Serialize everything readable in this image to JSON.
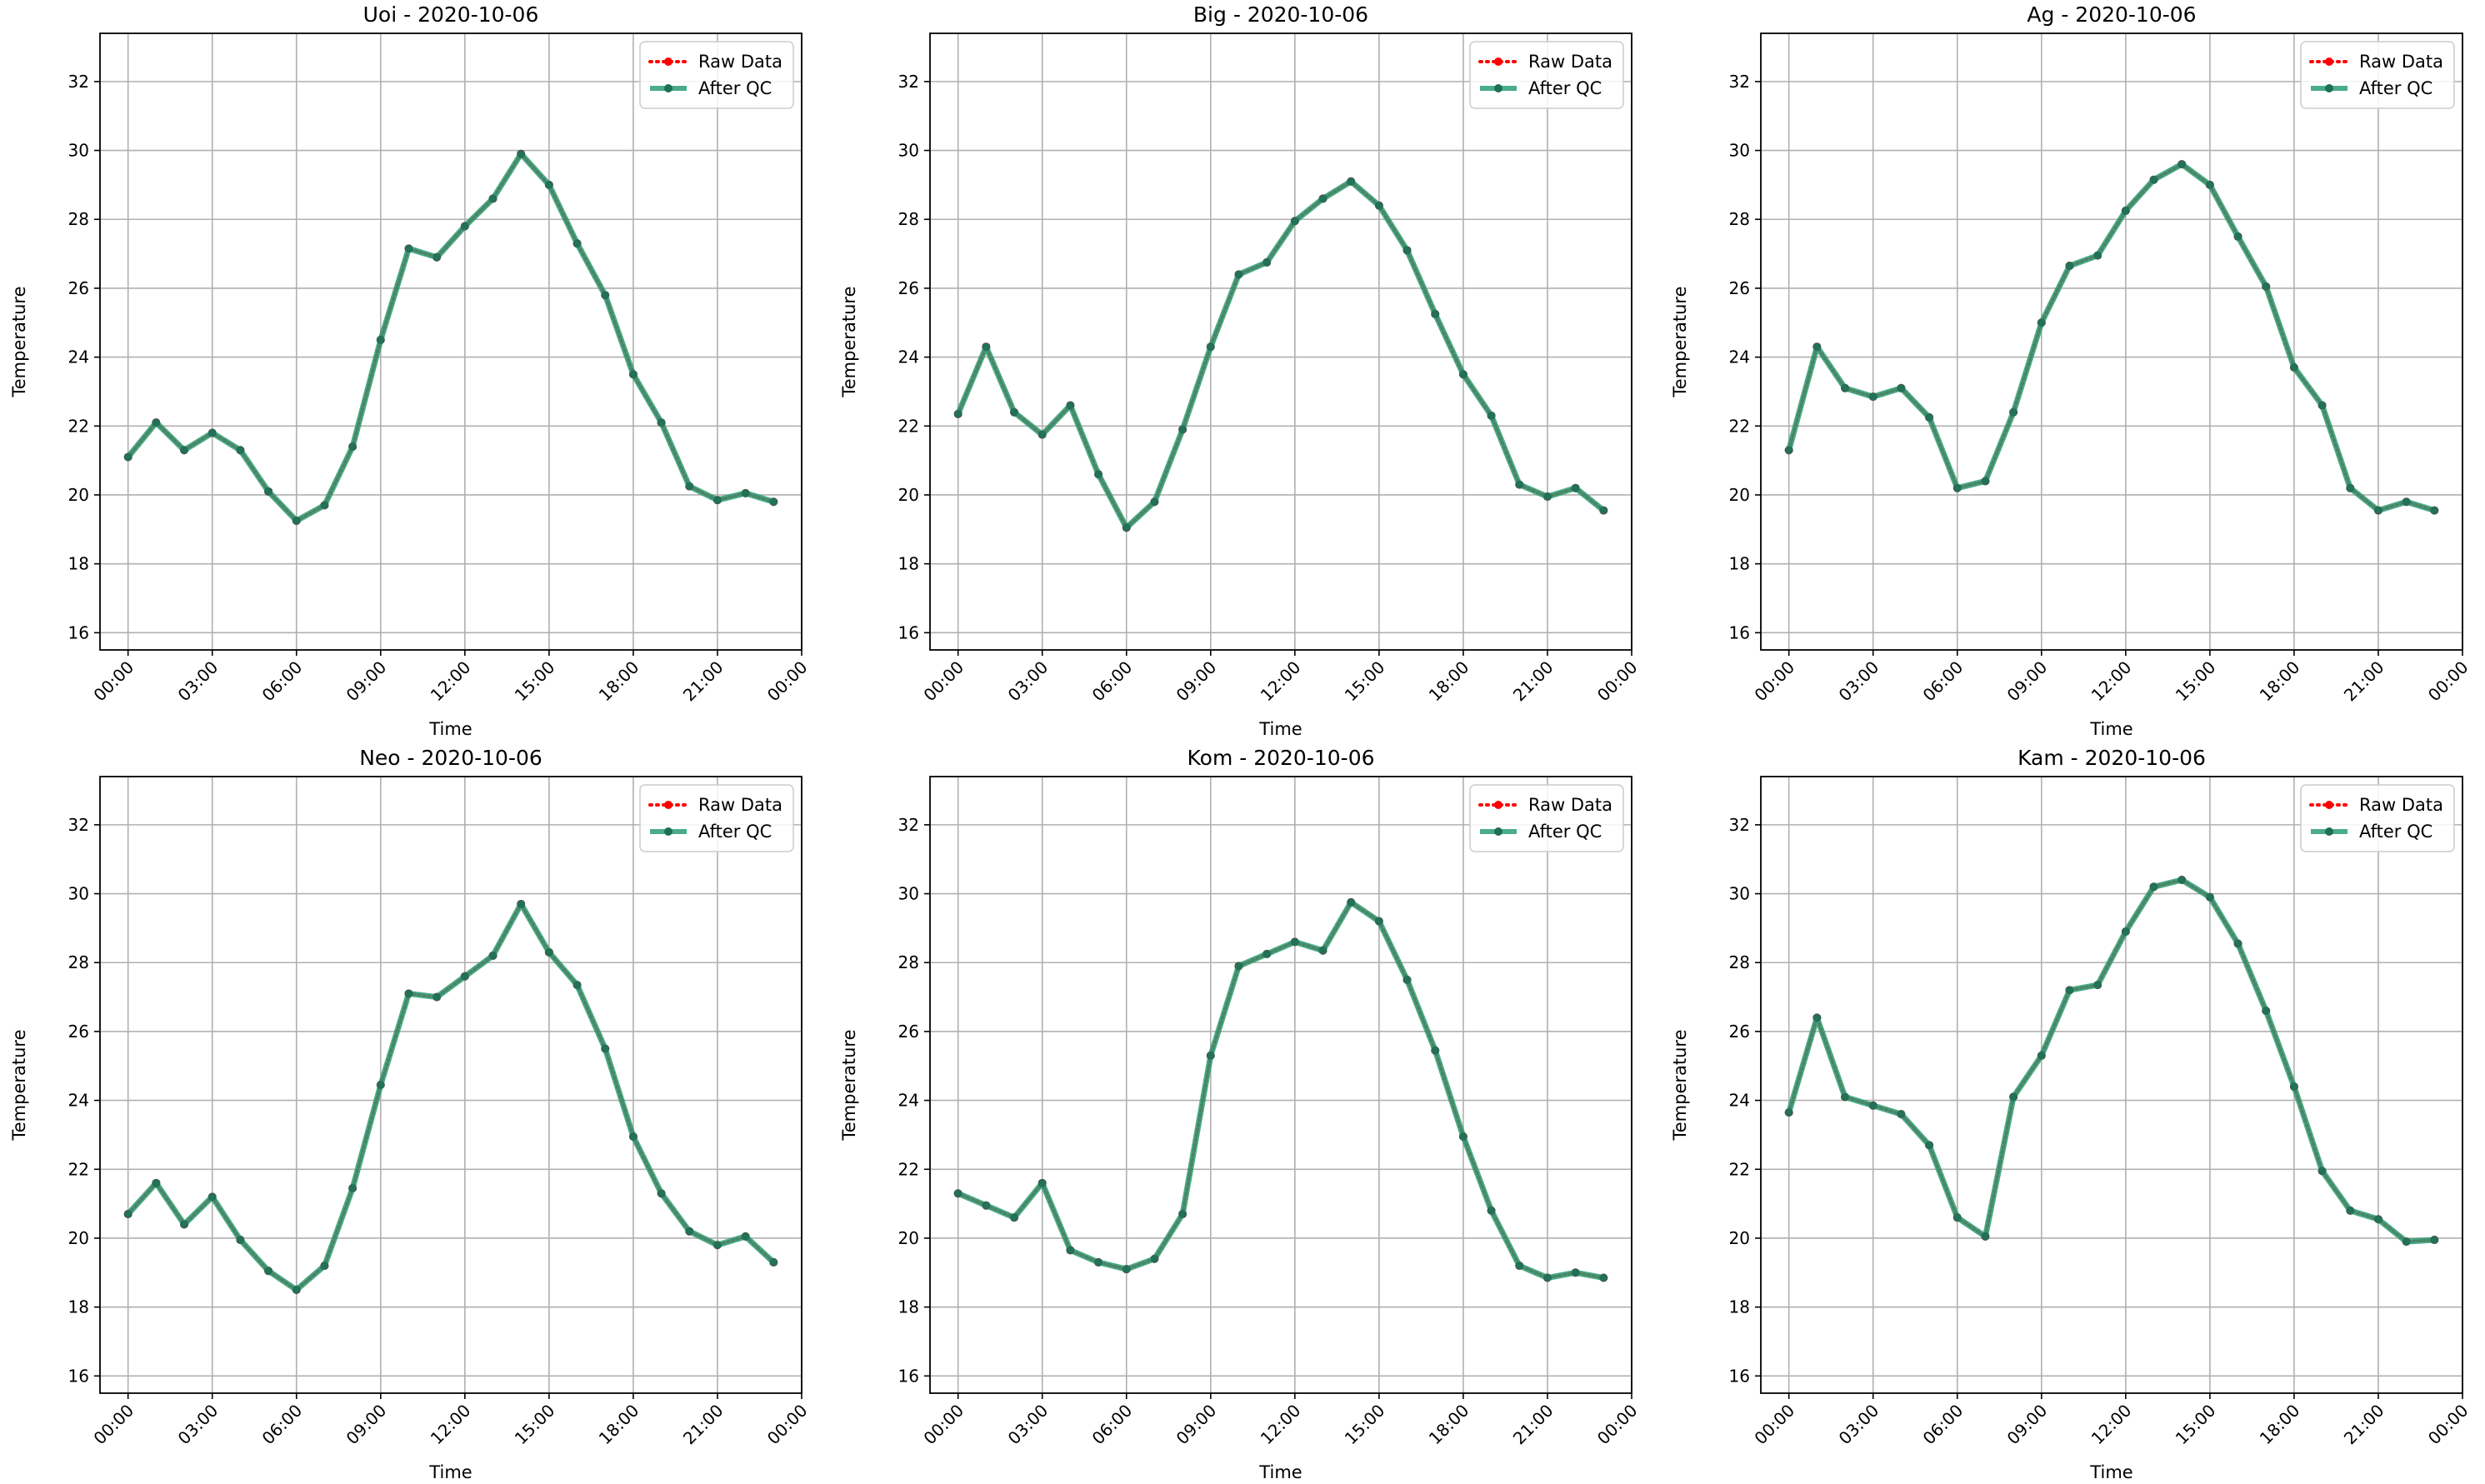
{
  "chart_data": [
    {
      "type": "line",
      "title": "Uoi - 2020-10-06",
      "xlabel": "Time",
      "ylabel": "Temperature",
      "ylim": [
        15.5,
        33.4
      ],
      "xlim_hours": [
        -1.0,
        24.0
      ],
      "yticks": [
        "16",
        "18",
        "20",
        "22",
        "24",
        "26",
        "28",
        "30",
        "32"
      ],
      "xticks": [
        "00:00",
        "03:00",
        "06:00",
        "09:00",
        "12:00",
        "15:00",
        "18:00",
        "21:00",
        "00:00"
      ],
      "grid": true,
      "legend_position": "top-right",
      "x_hours": [
        0,
        1,
        2,
        3,
        4,
        5,
        6,
        7,
        8,
        9,
        10,
        11,
        12,
        13,
        14,
        15,
        16,
        17,
        18,
        19,
        20,
        21,
        22,
        23
      ],
      "series": [
        {
          "name": "Raw Data",
          "color": "#ff0000",
          "style": "dotted",
          "values": [
            21.1,
            22.1,
            21.3,
            21.8,
            21.3,
            20.1,
            19.25,
            19.7,
            21.4,
            24.5,
            27.15,
            26.9,
            27.8,
            28.6,
            29.9,
            29.0,
            27.3,
            25.8,
            23.5,
            22.1,
            20.25,
            19.85,
            20.05,
            19.8
          ]
        },
        {
          "name": "After QC",
          "color": "#2a9d77",
          "style": "solid",
          "values": [
            21.1,
            22.1,
            21.3,
            21.8,
            21.3,
            20.1,
            19.25,
            19.7,
            21.4,
            24.5,
            27.15,
            26.9,
            27.8,
            28.6,
            29.9,
            29.0,
            27.3,
            25.8,
            23.5,
            22.1,
            20.25,
            19.85,
            20.05,
            19.8
          ]
        }
      ]
    },
    {
      "type": "line",
      "title": "Big - 2020-10-06",
      "xlabel": "Time",
      "ylabel": "Temperature",
      "ylim": [
        15.5,
        33.4
      ],
      "xlim_hours": [
        -1.0,
        24.0
      ],
      "yticks": [
        "16",
        "18",
        "20",
        "22",
        "24",
        "26",
        "28",
        "30",
        "32"
      ],
      "xticks": [
        "00:00",
        "03:00",
        "06:00",
        "09:00",
        "12:00",
        "15:00",
        "18:00",
        "21:00",
        "00:00"
      ],
      "grid": true,
      "legend_position": "top-right",
      "x_hours": [
        0,
        1,
        2,
        3,
        4,
        5,
        6,
        7,
        8,
        9,
        10,
        11,
        12,
        13,
        14,
        15,
        16,
        17,
        18,
        19,
        20,
        21,
        22,
        23
      ],
      "series": [
        {
          "name": "Raw Data",
          "color": "#ff0000",
          "style": "dotted",
          "values": [
            22.35,
            24.3,
            22.4,
            21.75,
            22.6,
            20.6,
            19.05,
            19.8,
            21.9,
            24.3,
            26.4,
            26.75,
            27.95,
            28.6,
            29.1,
            28.4,
            27.1,
            25.25,
            23.5,
            22.3,
            20.3,
            19.95,
            20.2,
            19.55
          ]
        },
        {
          "name": "After QC",
          "color": "#2a9d77",
          "style": "solid",
          "values": [
            22.35,
            24.3,
            22.4,
            21.75,
            22.6,
            20.6,
            19.05,
            19.8,
            21.9,
            24.3,
            26.4,
            26.75,
            27.95,
            28.6,
            29.1,
            28.4,
            27.1,
            25.25,
            23.5,
            22.3,
            20.3,
            19.95,
            20.2,
            19.55
          ]
        }
      ]
    },
    {
      "type": "line",
      "title": "Ag - 2020-10-06",
      "xlabel": "Time",
      "ylabel": "Temperature",
      "ylim": [
        15.5,
        33.4
      ],
      "xlim_hours": [
        -1.0,
        24.0
      ],
      "yticks": [
        "16",
        "18",
        "20",
        "22",
        "24",
        "26",
        "28",
        "30",
        "32"
      ],
      "xticks": [
        "00:00",
        "03:00",
        "06:00",
        "09:00",
        "12:00",
        "15:00",
        "18:00",
        "21:00",
        "00:00"
      ],
      "grid": true,
      "legend_position": "top-right",
      "x_hours": [
        0,
        1,
        2,
        3,
        4,
        5,
        6,
        7,
        8,
        9,
        10,
        11,
        12,
        13,
        14,
        15,
        16,
        17,
        18,
        19,
        20,
        21,
        22,
        23
      ],
      "series": [
        {
          "name": "Raw Data",
          "color": "#ff0000",
          "style": "dotted",
          "values": [
            21.3,
            24.3,
            23.1,
            22.85,
            23.1,
            22.25,
            20.2,
            20.4,
            22.4,
            25.0,
            26.65,
            26.95,
            28.25,
            29.15,
            29.6,
            29.0,
            27.5,
            26.05,
            23.7,
            22.6,
            20.2,
            19.55,
            19.8,
            19.55
          ]
        },
        {
          "name": "After QC",
          "color": "#2a9d77",
          "style": "solid",
          "values": [
            21.3,
            24.3,
            23.1,
            22.85,
            23.1,
            22.25,
            20.2,
            20.4,
            22.4,
            25.0,
            26.65,
            26.95,
            28.25,
            29.15,
            29.6,
            29.0,
            27.5,
            26.05,
            23.7,
            22.6,
            20.2,
            19.55,
            19.8,
            19.55
          ]
        }
      ]
    },
    {
      "type": "line",
      "title": "Neo - 2020-10-06",
      "xlabel": "Time",
      "ylabel": "Temperature",
      "ylim": [
        15.5,
        33.4
      ],
      "xlim_hours": [
        -1.0,
        24.0
      ],
      "yticks": [
        "16",
        "18",
        "20",
        "22",
        "24",
        "26",
        "28",
        "30",
        "32"
      ],
      "xticks": [
        "00:00",
        "03:00",
        "06:00",
        "09:00",
        "12:00",
        "15:00",
        "18:00",
        "21:00",
        "00:00"
      ],
      "grid": true,
      "legend_position": "top-right",
      "x_hours": [
        0,
        1,
        2,
        3,
        4,
        5,
        6,
        7,
        8,
        9,
        10,
        11,
        12,
        13,
        14,
        15,
        16,
        17,
        18,
        19,
        20,
        21,
        22,
        23
      ],
      "series": [
        {
          "name": "Raw Data",
          "color": "#ff0000",
          "style": "dotted",
          "values": [
            20.7,
            21.6,
            20.4,
            21.2,
            19.95,
            19.05,
            18.5,
            19.2,
            21.45,
            24.45,
            27.1,
            27.0,
            27.6,
            28.2,
            29.7,
            28.3,
            27.35,
            25.5,
            22.95,
            21.3,
            20.2,
            19.8,
            20.05,
            19.3
          ]
        },
        {
          "name": "After QC",
          "color": "#2a9d77",
          "style": "solid",
          "values": [
            20.7,
            21.6,
            20.4,
            21.2,
            19.95,
            19.05,
            18.5,
            19.2,
            21.45,
            24.45,
            27.1,
            27.0,
            27.6,
            28.2,
            29.7,
            28.3,
            27.35,
            25.5,
            22.95,
            21.3,
            20.2,
            19.8,
            20.05,
            19.3
          ]
        }
      ]
    },
    {
      "type": "line",
      "title": "Kom - 2020-10-06",
      "xlabel": "Time",
      "ylabel": "Temperature",
      "ylim": [
        15.5,
        33.4
      ],
      "xlim_hours": [
        -1.0,
        24.0
      ],
      "yticks": [
        "16",
        "18",
        "20",
        "22",
        "24",
        "26",
        "28",
        "30",
        "32"
      ],
      "xticks": [
        "00:00",
        "03:00",
        "06:00",
        "09:00",
        "12:00",
        "15:00",
        "18:00",
        "21:00",
        "00:00"
      ],
      "grid": true,
      "legend_position": "top-right",
      "x_hours": [
        0,
        1,
        2,
        3,
        4,
        5,
        6,
        7,
        8,
        9,
        10,
        11,
        12,
        13,
        14,
        15,
        16,
        17,
        18,
        19,
        20,
        21,
        22,
        23
      ],
      "series": [
        {
          "name": "Raw Data",
          "color": "#ff0000",
          "style": "dotted",
          "values": [
            21.3,
            20.95,
            20.6,
            21.6,
            19.65,
            19.3,
            19.1,
            19.4,
            20.7,
            25.3,
            27.9,
            28.25,
            28.6,
            28.35,
            29.75,
            29.2,
            27.5,
            25.45,
            22.95,
            20.8,
            19.2,
            18.85,
            19.0,
            18.85
          ]
        },
        {
          "name": "After QC",
          "color": "#2a9d77",
          "style": "solid",
          "values": [
            21.3,
            20.95,
            20.6,
            21.6,
            19.65,
            19.3,
            19.1,
            19.4,
            20.7,
            25.3,
            27.9,
            28.25,
            28.6,
            28.35,
            29.75,
            29.2,
            27.5,
            25.45,
            22.95,
            20.8,
            19.2,
            18.85,
            19.0,
            18.85
          ]
        }
      ]
    },
    {
      "type": "line",
      "title": "Kam - 2020-10-06",
      "xlabel": "Time",
      "ylabel": "Temperature",
      "ylim": [
        15.5,
        33.4
      ],
      "xlim_hours": [
        -1.0,
        24.0
      ],
      "yticks": [
        "16",
        "18",
        "20",
        "22",
        "24",
        "26",
        "28",
        "30",
        "32"
      ],
      "xticks": [
        "00:00",
        "03:00",
        "06:00",
        "09:00",
        "12:00",
        "15:00",
        "18:00",
        "21:00",
        "00:00"
      ],
      "grid": true,
      "legend_position": "top-right",
      "x_hours": [
        0,
        1,
        2,
        3,
        4,
        5,
        6,
        7,
        8,
        9,
        10,
        11,
        12,
        13,
        14,
        15,
        16,
        17,
        18,
        19,
        20,
        21,
        22,
        23
      ],
      "series": [
        {
          "name": "Raw Data",
          "color": "#ff0000",
          "style": "dotted",
          "values": [
            23.65,
            26.4,
            24.1,
            23.85,
            23.6,
            22.7,
            20.6,
            20.05,
            24.1,
            25.3,
            27.2,
            27.35,
            28.9,
            30.2,
            30.4,
            29.9,
            28.55,
            26.6,
            24.4,
            21.95,
            20.8,
            20.55,
            19.9,
            19.95
          ]
        },
        {
          "name": "After QC",
          "color": "#2a9d77",
          "style": "solid",
          "values": [
            23.65,
            26.4,
            24.1,
            23.85,
            23.6,
            22.7,
            20.6,
            20.05,
            24.1,
            25.3,
            27.2,
            27.35,
            28.9,
            30.2,
            30.4,
            29.9,
            28.55,
            26.6,
            24.4,
            21.95,
            20.8,
            20.55,
            19.9,
            19.95
          ]
        }
      ]
    }
  ]
}
